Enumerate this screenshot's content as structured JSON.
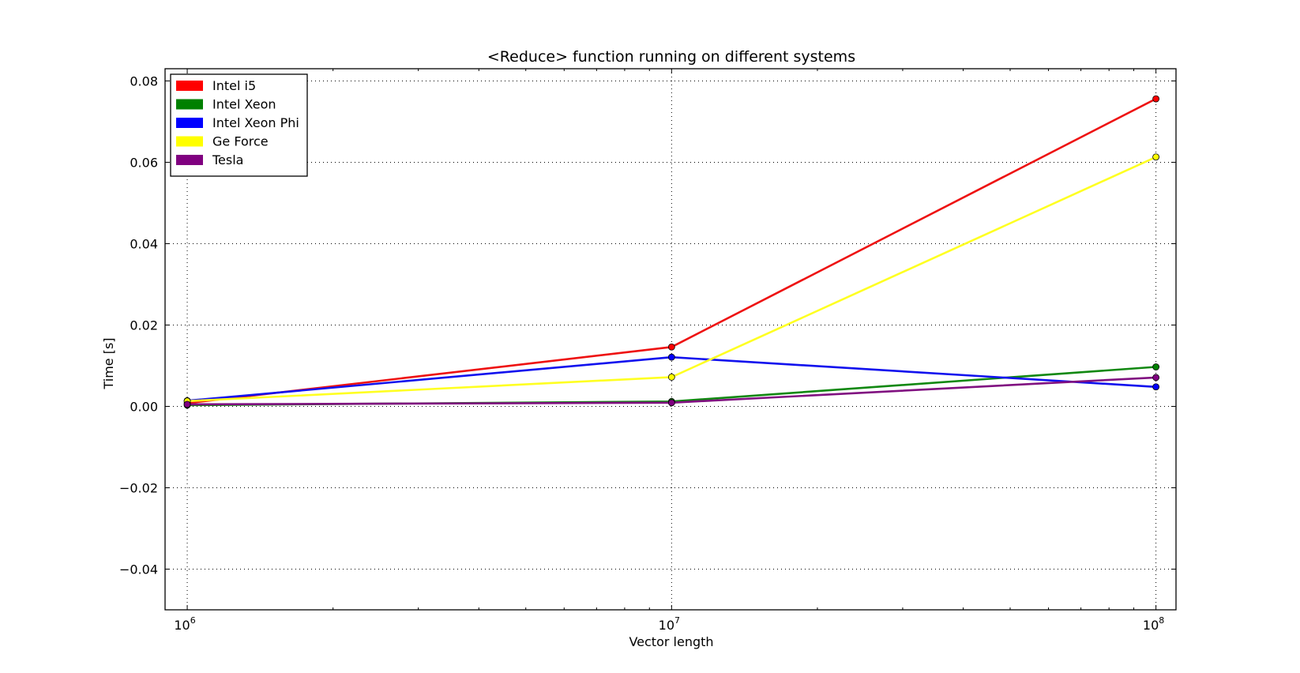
{
  "chart_data": {
    "type": "line",
    "title": "<Reduce> function running on different systems",
    "xlabel": "Vector length",
    "ylabel": "Time [s]",
    "x_scale": "log",
    "xlim": [
      900000,
      110000000
    ],
    "ylim": [
      -0.05,
      0.083
    ],
    "x": [
      1000000,
      10000000,
      100000000
    ],
    "x_ticks": [
      {
        "value": 1000000,
        "base": "10",
        "exp": "6"
      },
      {
        "value": 10000000,
        "base": "10",
        "exp": "7"
      },
      {
        "value": 100000000,
        "base": "10",
        "exp": "8"
      }
    ],
    "y_ticks": [
      {
        "value": 0.08,
        "label": "0.08"
      },
      {
        "value": 0.06,
        "label": "0.06"
      },
      {
        "value": 0.04,
        "label": "0.04"
      },
      {
        "value": 0.02,
        "label": "0.02"
      },
      {
        "value": 0.0,
        "label": "0.00"
      },
      {
        "value": -0.02,
        "label": "−0.02"
      },
      {
        "value": -0.04,
        "label": "−0.04"
      }
    ],
    "grid": true,
    "legend_position": "top-left",
    "series": [
      {
        "name": "Intel i5",
        "color": "#ff0000",
        "line_color": "#ee1111",
        "values": [
          0.0008,
          0.0146,
          0.0756
        ]
      },
      {
        "name": "Intel Xeon",
        "color": "#008000",
        "line_color": "#118811",
        "values": [
          0.0003,
          0.0012,
          0.0097
        ]
      },
      {
        "name": "Intel Xeon Phi",
        "color": "#0000ff",
        "line_color": "#1111ee",
        "values": [
          0.0014,
          0.0121,
          0.0048
        ]
      },
      {
        "name": "Ge Force",
        "color": "#ffff00",
        "line_color": "#ffff22",
        "values": [
          0.0013,
          0.0072,
          0.0613
        ]
      },
      {
        "name": "Tesla",
        "color": "#800080",
        "line_color": "#801080",
        "values": [
          0.0005,
          0.0009,
          0.0071
        ]
      }
    ]
  }
}
